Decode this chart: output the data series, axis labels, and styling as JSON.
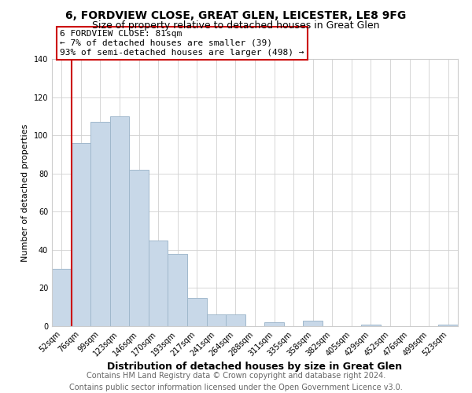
{
  "title": "6, FORDVIEW CLOSE, GREAT GLEN, LEICESTER, LE8 9FG",
  "subtitle": "Size of property relative to detached houses in Great Glen",
  "xlabel": "Distribution of detached houses by size in Great Glen",
  "ylabel": "Number of detached properties",
  "bar_color": "#c8d8e8",
  "bar_edgecolor": "#a0b8cc",
  "marker_color": "#cc0000",
  "categories": [
    "52sqm",
    "76sqm",
    "99sqm",
    "123sqm",
    "146sqm",
    "170sqm",
    "193sqm",
    "217sqm",
    "241sqm",
    "264sqm",
    "288sqm",
    "311sqm",
    "335sqm",
    "358sqm",
    "382sqm",
    "405sqm",
    "429sqm",
    "452sqm",
    "476sqm",
    "499sqm",
    "523sqm"
  ],
  "values": [
    30,
    96,
    107,
    110,
    82,
    45,
    38,
    15,
    6,
    6,
    0,
    2,
    0,
    3,
    0,
    0,
    1,
    0,
    0,
    0,
    1
  ],
  "marker_bar_index": 1,
  "ylim": [
    0,
    140
  ],
  "annotation_title": "6 FORDVIEW CLOSE: 81sqm",
  "annotation_line1": "← 7% of detached houses are smaller (39)",
  "annotation_line2": "93% of semi-detached houses are larger (498) →",
  "footer1": "Contains HM Land Registry data © Crown copyright and database right 2024.",
  "footer2": "Contains public sector information licensed under the Open Government Licence v3.0.",
  "title_fontsize": 10,
  "subtitle_fontsize": 9,
  "xlabel_fontsize": 9,
  "ylabel_fontsize": 8,
  "tick_fontsize": 7,
  "annotation_fontsize": 8,
  "footer_fontsize": 7
}
